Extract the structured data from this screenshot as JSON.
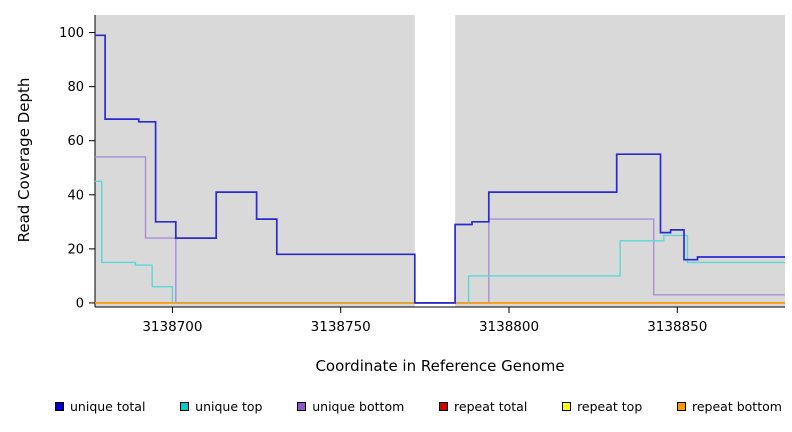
{
  "chart_data": {
    "type": "line",
    "subtype": "step",
    "title": "",
    "xlabel": "Coordinate in Reference Genome",
    "ylabel": "Read Coverage Depth",
    "xlim": [
      3138677,
      3138882
    ],
    "ylim": [
      -1.5,
      106.5
    ],
    "xticks": [
      3138700,
      3138750,
      3138800,
      3138850
    ],
    "yticks": [
      0,
      20,
      40,
      60,
      80,
      100
    ],
    "grid": false,
    "legend_position": "bottom",
    "panel_background": "#d9d9d9",
    "gap_region": {
      "x_start": 3138772,
      "x_end": 3138784,
      "color": "#ffffff"
    },
    "series": [
      {
        "name": "unique total",
        "color": "#2a2ad0",
        "line_width": 1.7,
        "points": [
          [
            3138677,
            99
          ],
          [
            3138680,
            68
          ],
          [
            3138690,
            67
          ],
          [
            3138695,
            30
          ],
          [
            3138701,
            24
          ],
          [
            3138713,
            41
          ],
          [
            3138725,
            31
          ],
          [
            3138731,
            18
          ],
          [
            3138772,
            0
          ],
          [
            3138784,
            29
          ],
          [
            3138789,
            30
          ],
          [
            3138794,
            41
          ],
          [
            3138832,
            55
          ],
          [
            3138845,
            26
          ],
          [
            3138848,
            27
          ],
          [
            3138852,
            16
          ],
          [
            3138856,
            17
          ],
          [
            3138882,
            17
          ]
        ]
      },
      {
        "name": "unique top",
        "color": "#5cd7d7",
        "line_width": 1.4,
        "points": [
          [
            3138677,
            45
          ],
          [
            3138679,
            15
          ],
          [
            3138689,
            14
          ],
          [
            3138694,
            6
          ],
          [
            3138700,
            0
          ],
          [
            3138788,
            10
          ],
          [
            3138833,
            23
          ],
          [
            3138846,
            25
          ],
          [
            3138853,
            15
          ],
          [
            3138882,
            15
          ]
        ]
      },
      {
        "name": "unique bottom",
        "color": "#a98fd6",
        "line_width": 1.4,
        "points": [
          [
            3138677,
            54
          ],
          [
            3138692,
            24
          ],
          [
            3138701,
            0
          ],
          [
            3138794,
            31
          ],
          [
            3138843,
            3
          ],
          [
            3138882,
            3
          ]
        ]
      },
      {
        "name": "repeat total",
        "color": "#cc0000",
        "line_width": 1.4,
        "points": [
          [
            3138677,
            0
          ],
          [
            3138882,
            0
          ]
        ]
      },
      {
        "name": "repeat top",
        "color": "#ffff00",
        "line_width": 1.4,
        "points": [
          [
            3138677,
            0
          ],
          [
            3138882,
            0
          ]
        ]
      },
      {
        "name": "repeat bottom",
        "color": "#ff9900",
        "line_width": 1.4,
        "points": [
          [
            3138677,
            0
          ],
          [
            3138882,
            0
          ]
        ]
      }
    ],
    "draw_order": [
      3,
      4,
      2,
      1,
      5,
      0
    ]
  },
  "legend": {
    "items": [
      {
        "label": "unique total",
        "color": "#0000cc"
      },
      {
        "label": "unique top",
        "color": "#00cccc"
      },
      {
        "label": "unique bottom",
        "color": "#8c58c8"
      },
      {
        "label": "repeat total",
        "color": "#cc0000"
      },
      {
        "label": "repeat top",
        "color": "#ffff00"
      },
      {
        "label": "repeat bottom",
        "color": "#ff9900"
      }
    ]
  }
}
